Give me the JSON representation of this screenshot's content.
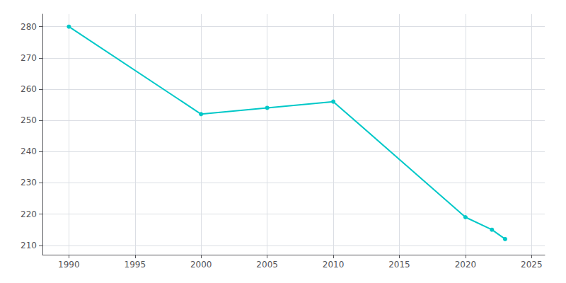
{
  "chart_data": {
    "type": "line",
    "x": [
      1990,
      2000,
      2005,
      2010,
      2020,
      2022,
      2023
    ],
    "values": [
      280,
      252,
      254,
      256,
      219,
      215,
      212
    ],
    "color": "#00C8C8",
    "marker": "circle",
    "xlim": [
      1988,
      2026
    ],
    "ylim": [
      207,
      284
    ],
    "xticks": [
      1990,
      1995,
      2000,
      2005,
      2010,
      2015,
      2020,
      2025
    ],
    "yticks": [
      210,
      220,
      230,
      240,
      250,
      260,
      270,
      280
    ],
    "grid": true
  }
}
